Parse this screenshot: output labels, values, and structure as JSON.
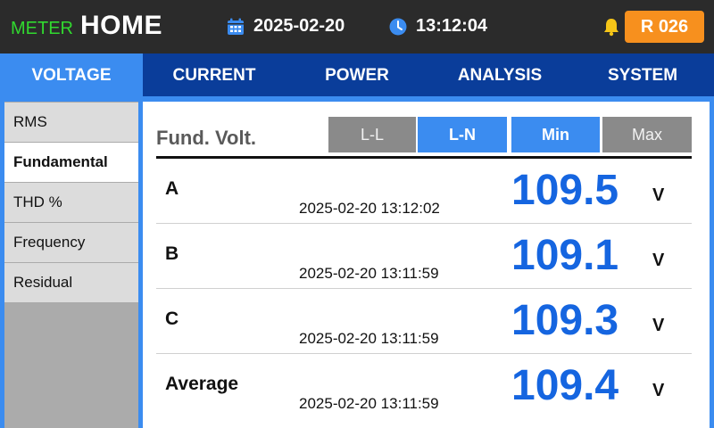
{
  "header": {
    "brand_meter": "METER",
    "brand_home": "HOME",
    "date": "2025-02-20",
    "time": "13:12:04",
    "badge": "R 026",
    "icons": {
      "calendar": "calendar-icon",
      "clock": "clock-icon",
      "bell": "bell-icon"
    },
    "colors": {
      "bar": "#2b2b2b",
      "meter": "#31d82f",
      "badge": "#f7901e",
      "bell": "#f5c518"
    }
  },
  "tabs": [
    {
      "label": "VOLTAGE",
      "active": true
    },
    {
      "label": "CURRENT",
      "active": false
    },
    {
      "label": "POWER",
      "active": false
    },
    {
      "label": "ANALYSIS",
      "active": false
    },
    {
      "label": "SYSTEM",
      "active": false
    }
  ],
  "sidebar": {
    "items": [
      {
        "label": "RMS",
        "active": false
      },
      {
        "label": "Fundamental",
        "active": true
      },
      {
        "label": "THD %",
        "active": false
      },
      {
        "label": "Frequency",
        "active": false
      },
      {
        "label": "Residual",
        "active": false
      }
    ]
  },
  "main": {
    "title": "Fund. Volt.",
    "buttons": [
      {
        "label": "L-L",
        "active": false
      },
      {
        "label": "L-N",
        "active": true
      },
      {
        "label": "Min",
        "active": true
      },
      {
        "label": "Max",
        "active": false
      }
    ],
    "rows": [
      {
        "label": "A",
        "timestamp": "2025-02-20 13:12:02",
        "value": "109.5",
        "unit": "V"
      },
      {
        "label": "B",
        "timestamp": "2025-02-20 13:11:59",
        "value": "109.1",
        "unit": "V"
      },
      {
        "label": "C",
        "timestamp": "2025-02-20 13:11:59",
        "value": "109.3",
        "unit": "V"
      },
      {
        "label": "Average",
        "timestamp": "2025-02-20 13:11:59",
        "value": "109.4",
        "unit": "V"
      }
    ]
  },
  "colors": {
    "accent": "#3b8cf0",
    "tab_bar": "#0a3d9a",
    "value": "#1565e0",
    "button_off": "#8a8a8a"
  }
}
